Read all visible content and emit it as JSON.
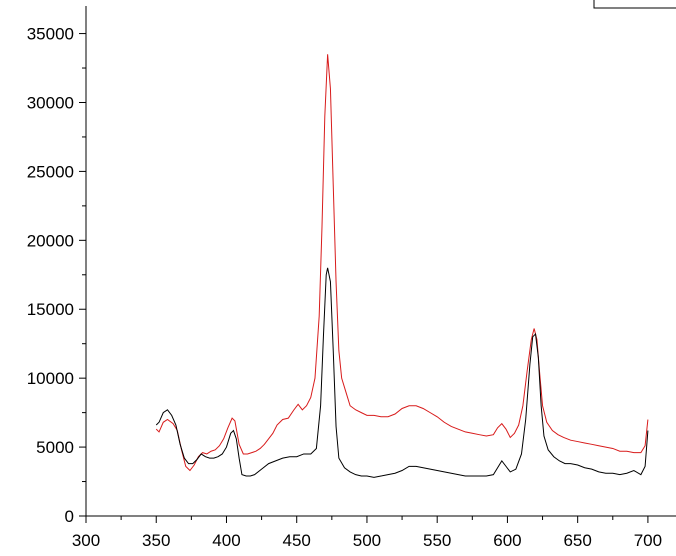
{
  "chart_data": {
    "type": "line",
    "title": "",
    "xlabel": "",
    "ylabel": "",
    "xlim": [
      300,
      720
    ],
    "ylim": [
      0,
      37000
    ],
    "x_ticks": [
      300,
      350,
      400,
      450,
      500,
      550,
      600,
      650,
      700
    ],
    "x_tick_labels": [
      "300",
      "350",
      "400",
      "450",
      "500",
      "550",
      "600",
      "650",
      "700"
    ],
    "y_ticks": [
      0,
      5000,
      10000,
      15000,
      20000,
      25000,
      30000,
      35000
    ],
    "y_tick_labels": [
      "0",
      "5000",
      "10000",
      "15000",
      "20000",
      "25000",
      "30000",
      "35000"
    ],
    "grid": false,
    "legend_position": "top-right (clipped)",
    "series": [
      {
        "color": "#d81b1b",
        "points": [
          [
            350,
            6300
          ],
          [
            352,
            6100
          ],
          [
            355,
            6800
          ],
          [
            358,
            7000
          ],
          [
            362,
            6700
          ],
          [
            365,
            6200
          ],
          [
            368,
            4800
          ],
          [
            371,
            3600
          ],
          [
            374,
            3300
          ],
          [
            377,
            3700
          ],
          [
            380,
            4300
          ],
          [
            383,
            4600
          ],
          [
            386,
            4500
          ],
          [
            389,
            4700
          ],
          [
            392,
            4800
          ],
          [
            395,
            5100
          ],
          [
            398,
            5600
          ],
          [
            401,
            6400
          ],
          [
            404,
            7100
          ],
          [
            406,
            6900
          ],
          [
            409,
            5200
          ],
          [
            412,
            4500
          ],
          [
            415,
            4500
          ],
          [
            418,
            4600
          ],
          [
            421,
            4700
          ],
          [
            424,
            4900
          ],
          [
            427,
            5200
          ],
          [
            430,
            5600
          ],
          [
            433,
            6000
          ],
          [
            436,
            6600
          ],
          [
            440,
            7000
          ],
          [
            444,
            7100
          ],
          [
            448,
            7700
          ],
          [
            451,
            8100
          ],
          [
            454,
            7700
          ],
          [
            457,
            8000
          ],
          [
            460,
            8600
          ],
          [
            463,
            10000
          ],
          [
            466,
            14500
          ],
          [
            468,
            21000
          ],
          [
            470,
            29000
          ],
          [
            472,
            33500
          ],
          [
            474,
            31000
          ],
          [
            476,
            24000
          ],
          [
            478,
            17000
          ],
          [
            480,
            12000
          ],
          [
            482,
            10000
          ],
          [
            485,
            9000
          ],
          [
            488,
            8000
          ],
          [
            492,
            7700
          ],
          [
            496,
            7500
          ],
          [
            500,
            7300
          ],
          [
            505,
            7300
          ],
          [
            510,
            7200
          ],
          [
            515,
            7200
          ],
          [
            520,
            7400
          ],
          [
            525,
            7800
          ],
          [
            530,
            8000
          ],
          [
            535,
            8000
          ],
          [
            540,
            7800
          ],
          [
            545,
            7500
          ],
          [
            550,
            7200
          ],
          [
            555,
            6800
          ],
          [
            560,
            6500
          ],
          [
            565,
            6300
          ],
          [
            570,
            6100
          ],
          [
            575,
            6000
          ],
          [
            580,
            5900
          ],
          [
            585,
            5800
          ],
          [
            590,
            5900
          ],
          [
            593,
            6400
          ],
          [
            596,
            6700
          ],
          [
            599,
            6300
          ],
          [
            602,
            5700
          ],
          [
            605,
            6000
          ],
          [
            608,
            6600
          ],
          [
            611,
            8000
          ],
          [
            614,
            10500
          ],
          [
            617,
            12800
          ],
          [
            619,
            13600
          ],
          [
            621,
            12800
          ],
          [
            623,
            10300
          ],
          [
            625,
            8000
          ],
          [
            628,
            6800
          ],
          [
            632,
            6200
          ],
          [
            636,
            5900
          ],
          [
            640,
            5700
          ],
          [
            645,
            5500
          ],
          [
            650,
            5400
          ],
          [
            655,
            5300
          ],
          [
            660,
            5200
          ],
          [
            665,
            5100
          ],
          [
            670,
            5000
          ],
          [
            675,
            4900
          ],
          [
            680,
            4700
          ],
          [
            685,
            4700
          ],
          [
            690,
            4600
          ],
          [
            695,
            4600
          ],
          [
            698,
            5100
          ],
          [
            700,
            7000
          ]
        ]
      },
      {
        "color": "#000000",
        "points": [
          [
            350,
            6600
          ],
          [
            352,
            6800
          ],
          [
            355,
            7500
          ],
          [
            358,
            7700
          ],
          [
            361,
            7300
          ],
          [
            364,
            6600
          ],
          [
            367,
            5200
          ],
          [
            370,
            4200
          ],
          [
            373,
            3800
          ],
          [
            376,
            3800
          ],
          [
            379,
            4100
          ],
          [
            382,
            4500
          ],
          [
            385,
            4300
          ],
          [
            388,
            4200
          ],
          [
            391,
            4200
          ],
          [
            394,
            4300
          ],
          [
            397,
            4500
          ],
          [
            400,
            5000
          ],
          [
            403,
            6000
          ],
          [
            405,
            6200
          ],
          [
            407,
            5600
          ],
          [
            409,
            4200
          ],
          [
            411,
            3000
          ],
          [
            414,
            2900
          ],
          [
            417,
            2900
          ],
          [
            420,
            3000
          ],
          [
            425,
            3400
          ],
          [
            430,
            3800
          ],
          [
            435,
            4000
          ],
          [
            440,
            4200
          ],
          [
            445,
            4300
          ],
          [
            450,
            4300
          ],
          [
            455,
            4500
          ],
          [
            460,
            4500
          ],
          [
            464,
            4900
          ],
          [
            467,
            8000
          ],
          [
            469,
            13000
          ],
          [
            471,
            17500
          ],
          [
            472,
            18000
          ],
          [
            474,
            17000
          ],
          [
            476,
            12000
          ],
          [
            478,
            6500
          ],
          [
            480,
            4200
          ],
          [
            484,
            3500
          ],
          [
            488,
            3200
          ],
          [
            492,
            3000
          ],
          [
            496,
            2900
          ],
          [
            500,
            2900
          ],
          [
            505,
            2800
          ],
          [
            510,
            2900
          ],
          [
            515,
            3000
          ],
          [
            520,
            3100
          ],
          [
            525,
            3300
          ],
          [
            530,
            3600
          ],
          [
            535,
            3600
          ],
          [
            540,
            3500
          ],
          [
            545,
            3400
          ],
          [
            550,
            3300
          ],
          [
            555,
            3200
          ],
          [
            560,
            3100
          ],
          [
            565,
            3000
          ],
          [
            570,
            2900
          ],
          [
            575,
            2900
          ],
          [
            580,
            2900
          ],
          [
            585,
            2900
          ],
          [
            590,
            3000
          ],
          [
            593,
            3500
          ],
          [
            596,
            4000
          ],
          [
            599,
            3600
          ],
          [
            602,
            3200
          ],
          [
            606,
            3400
          ],
          [
            610,
            4500
          ],
          [
            613,
            7000
          ],
          [
            616,
            11000
          ],
          [
            618,
            13000
          ],
          [
            620,
            13200
          ],
          [
            622,
            11500
          ],
          [
            624,
            8000
          ],
          [
            626,
            5800
          ],
          [
            629,
            4800
          ],
          [
            633,
            4300
          ],
          [
            637,
            4000
          ],
          [
            641,
            3800
          ],
          [
            645,
            3800
          ],
          [
            650,
            3700
          ],
          [
            655,
            3500
          ],
          [
            660,
            3400
          ],
          [
            665,
            3200
          ],
          [
            670,
            3100
          ],
          [
            675,
            3100
          ],
          [
            680,
            3000
          ],
          [
            685,
            3100
          ],
          [
            690,
            3300
          ],
          [
            695,
            3000
          ],
          [
            698,
            3600
          ],
          [
            700,
            6200
          ]
        ]
      }
    ]
  }
}
